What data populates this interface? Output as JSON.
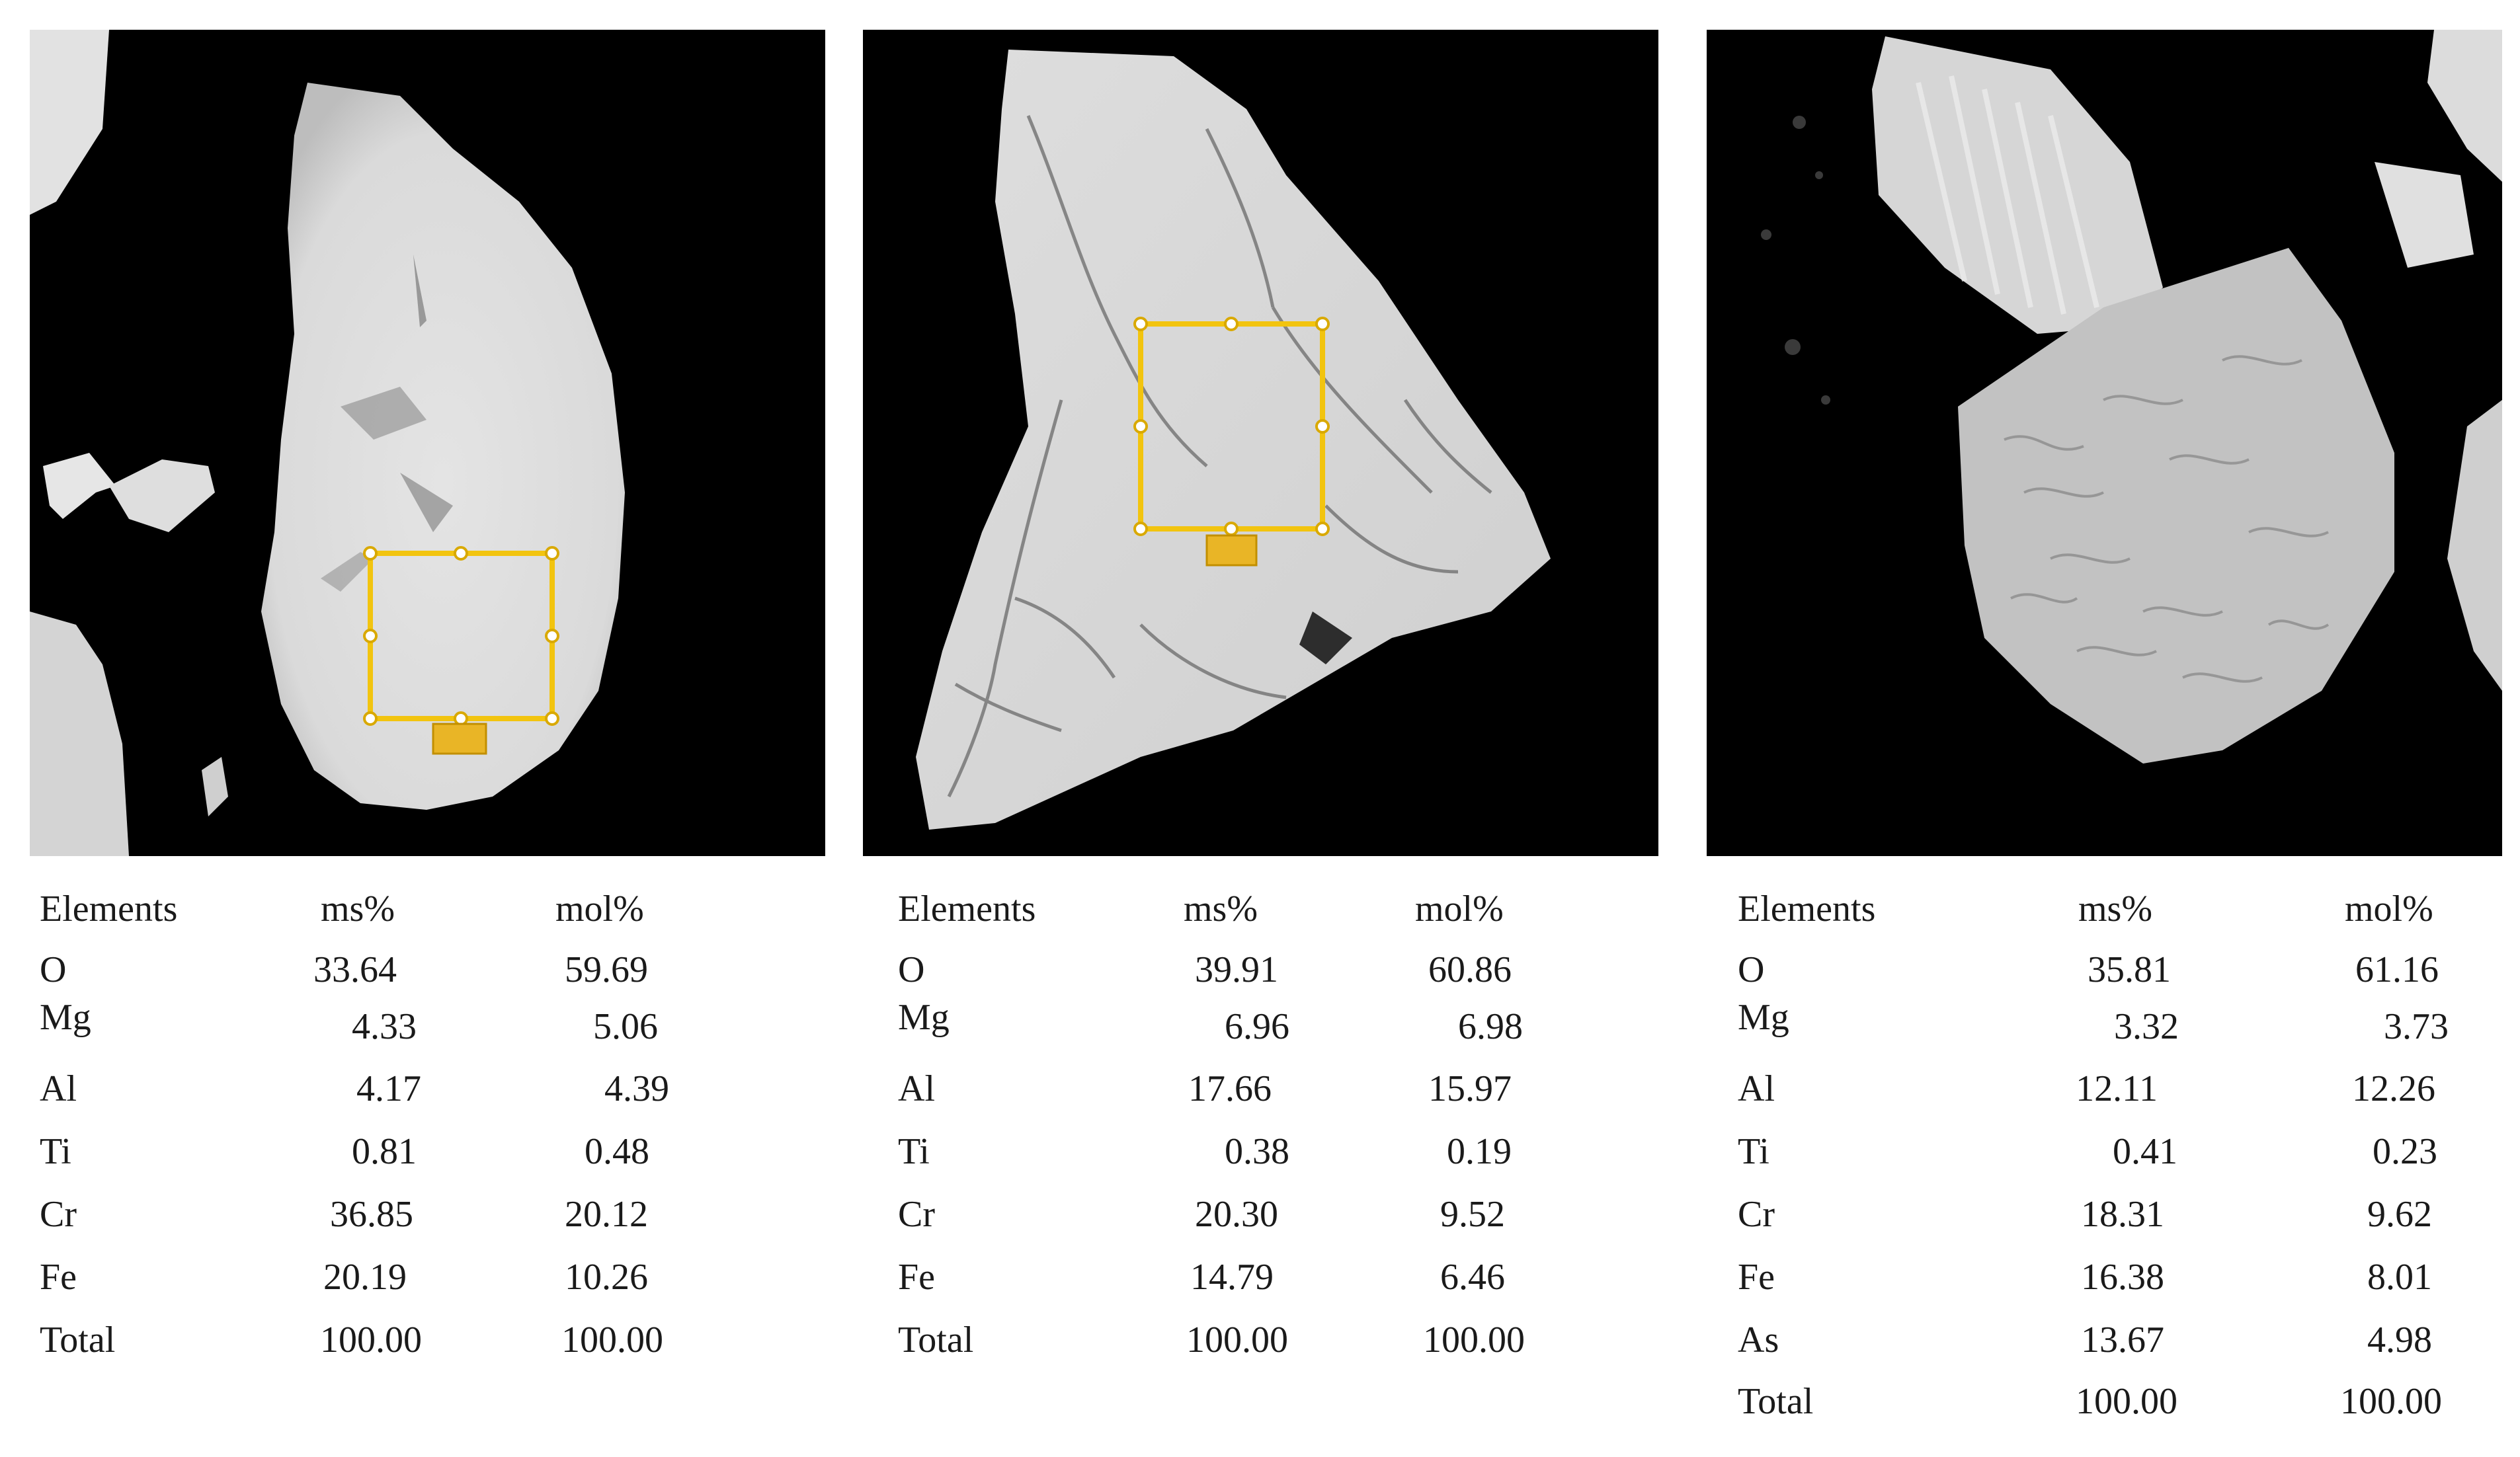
{
  "panels": [
    {
      "id": "panel-1",
      "has_selection_box": true,
      "headers": {
        "element": "Elements",
        "ms": "ms%",
        "mol": "mol%"
      },
      "rows": [
        {
          "element": "O",
          "ms": "33.64",
          "mol": "59.69"
        },
        {
          "element": "Mg",
          "ms": "4.33",
          "mol": "5.06"
        },
        {
          "element": "Al",
          "ms": "4.17",
          "mol": "4.39"
        },
        {
          "element": "Ti",
          "ms": "0.81",
          "mol": "0.48"
        },
        {
          "element": "Cr",
          "ms": "36.85",
          "mol": "20.12"
        },
        {
          "element": "Fe",
          "ms": "20.19",
          "mol": "10.26"
        },
        {
          "element": "Total",
          "ms": "100.00",
          "mol": "100.00"
        }
      ]
    },
    {
      "id": "panel-2",
      "has_selection_box": true,
      "headers": {
        "element": "Elements",
        "ms": "ms%",
        "mol": "mol%"
      },
      "rows": [
        {
          "element": "O",
          "ms": "39.91",
          "mol": "60.86"
        },
        {
          "element": "Mg",
          "ms": "6.96",
          "mol": "6.98"
        },
        {
          "element": "Al",
          "ms": "17.66",
          "mol": "15.97"
        },
        {
          "element": "Ti",
          "ms": "0.38",
          "mol": "0.19"
        },
        {
          "element": "Cr",
          "ms": "20.30",
          "mol": "9.52"
        },
        {
          "element": "Fe",
          "ms": "14.79",
          "mol": "6.46"
        },
        {
          "element": "Total",
          "ms": "100.00",
          "mol": "100.00"
        }
      ]
    },
    {
      "id": "panel-3",
      "has_selection_box": false,
      "headers": {
        "element": "Elements",
        "ms": "ms%",
        "mol": "mol%"
      },
      "rows": [
        {
          "element": "O",
          "ms": "35.81",
          "mol": "61.16"
        },
        {
          "element": "Mg",
          "ms": "3.32",
          "mol": "3.73"
        },
        {
          "element": "Al",
          "ms": "12.11",
          "mol": "12.26"
        },
        {
          "element": "Ti",
          "ms": "0.41",
          "mol": "0.23"
        },
        {
          "element": "Cr",
          "ms": "18.31",
          "mol": "9.62"
        },
        {
          "element": "Fe",
          "ms": "16.38",
          "mol": "8.01"
        },
        {
          "element": "As",
          "ms": "13.67",
          "mol": "4.98"
        },
        {
          "element": "Total",
          "ms": "100.00",
          "mol": "100.00"
        }
      ]
    }
  ],
  "colors": {
    "background": "#000000",
    "particle": "#dcdcdc",
    "selection_box": "#f2c40f"
  }
}
